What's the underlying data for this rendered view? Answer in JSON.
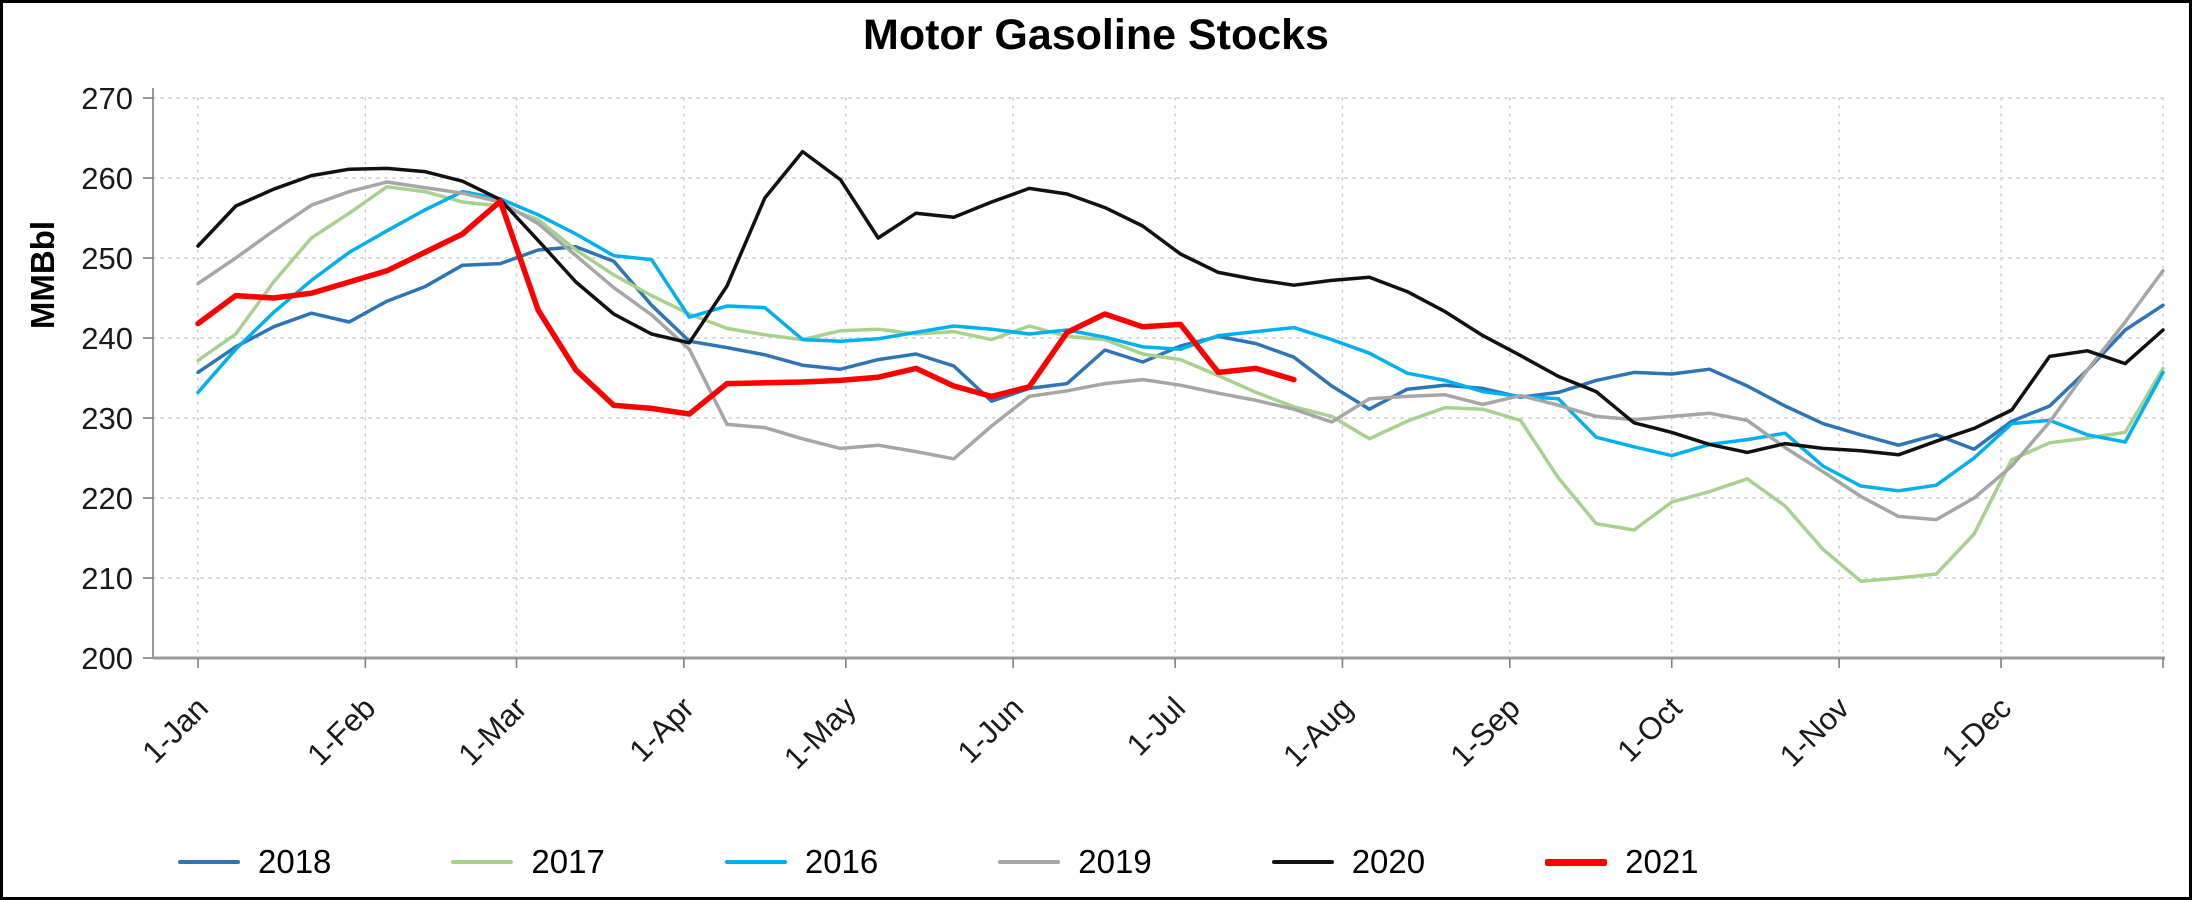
{
  "chart_data": {
    "type": "line",
    "title": "Motor Gasoline Stocks",
    "xlabel": "",
    "ylabel": "MMBbl",
    "ylim": [
      200,
      270
    ],
    "y_ticks": [
      200,
      210,
      220,
      230,
      240,
      250,
      260,
      270
    ],
    "x_tick_labels": [
      "1-Jan",
      "1-Feb",
      "1-Mar",
      "1-Apr",
      "1-May",
      "1-Jun",
      "1-Jul",
      "1-Aug",
      "1-Sep",
      "1-Oct",
      "1-Nov",
      "1-Dec"
    ],
    "x_tick_days": [
      0,
      31,
      59,
      90,
      120,
      151,
      181,
      212,
      243,
      273,
      304,
      334
    ],
    "days_per_point": 7,
    "x_domain_days": [
      0,
      364
    ],
    "grid": "dashed",
    "legend_position": "bottom",
    "series": [
      {
        "name": "2018",
        "color": "#2E75B6",
        "width": 3.5,
        "values": [
          235.7,
          238.9,
          241.4,
          243.1,
          242.0,
          244.6,
          246.4,
          249.1,
          249.3,
          251.0,
          251.4,
          249.6,
          244.1,
          239.6,
          238.8,
          237.9,
          236.6,
          236.1,
          237.3,
          238.0,
          236.5,
          232.1,
          233.7,
          234.3,
          238.5,
          237.0,
          239.0,
          240.2,
          239.3,
          237.6,
          234.0,
          231.1,
          233.6,
          234.1,
          233.7,
          232.6,
          233.2,
          234.7,
          235.7,
          235.5,
          236.1,
          234.0,
          231.5,
          229.3,
          227.9,
          226.6,
          227.9,
          226.1,
          229.6,
          231.5,
          236.0,
          241.0,
          244.1
        ]
      },
      {
        "name": "2017",
        "color": "#A9D18E",
        "width": 3.5,
        "values": [
          237.2,
          240.5,
          247.0,
          252.5,
          255.6,
          258.9,
          258.3,
          257.0,
          256.5,
          254.8,
          251.0,
          247.9,
          245.3,
          243.0,
          241.2,
          240.4,
          239.8,
          240.9,
          241.1,
          240.5,
          240.8,
          239.8,
          241.5,
          240.2,
          239.8,
          238.0,
          237.3,
          235.3,
          233.2,
          231.4,
          230.2,
          227.4,
          229.6,
          231.3,
          231.1,
          229.7,
          222.5,
          216.8,
          216.0,
          219.5,
          220.8,
          222.4,
          219.0,
          213.6,
          209.6,
          210.0,
          210.5,
          215.5,
          224.8,
          226.9,
          227.5,
          228.2,
          236.2
        ]
      },
      {
        "name": "2016",
        "color": "#00B0F0",
        "width": 3.5,
        "values": [
          233.2,
          238.6,
          243.2,
          247.2,
          250.7,
          253.4,
          256.0,
          258.3,
          257.4,
          255.4,
          253.0,
          250.3,
          249.8,
          242.6,
          244.0,
          243.8,
          239.8,
          239.6,
          239.9,
          240.7,
          241.5,
          241.1,
          240.5,
          241.0,
          240.1,
          238.9,
          238.6,
          240.3,
          240.8,
          241.3,
          239.8,
          238.1,
          235.6,
          234.7,
          233.3,
          232.7,
          232.4,
          227.6,
          226.4,
          225.3,
          226.7,
          227.3,
          228.1,
          224.0,
          221.5,
          220.9,
          221.6,
          225.0,
          229.3,
          229.7,
          227.9,
          227.0,
          235.7
        ]
      },
      {
        "name": "2019",
        "color": "#A6A6A6",
        "width": 3.5,
        "values": [
          246.8,
          250.0,
          253.4,
          256.6,
          258.3,
          259.5,
          258.8,
          258.1,
          257.0,
          254.3,
          250.3,
          246.3,
          242.9,
          238.6,
          229.2,
          228.8,
          227.4,
          226.2,
          226.6,
          225.8,
          224.9,
          229.0,
          232.7,
          233.4,
          234.3,
          234.8,
          234.1,
          233.1,
          232.2,
          231.1,
          229.5,
          232.4,
          232.7,
          232.9,
          231.7,
          232.8,
          231.6,
          230.2,
          229.8,
          230.2,
          230.6,
          229.7,
          226.3,
          223.3,
          220.2,
          217.7,
          217.3,
          220.0,
          224.0,
          229.5,
          236.0,
          242.0,
          248.4
        ]
      },
      {
        "name": "2020",
        "color": "#111111",
        "width": 3.5,
        "values": [
          251.5,
          256.5,
          258.6,
          260.3,
          261.1,
          261.2,
          260.8,
          259.6,
          257.3,
          252.2,
          247.0,
          243.0,
          240.5,
          239.4,
          246.5,
          257.5,
          263.3,
          259.8,
          252.5,
          255.6,
          255.1,
          257.0,
          258.7,
          258.0,
          256.3,
          254.0,
          250.5,
          248.2,
          247.3,
          246.6,
          247.2,
          247.6,
          245.8,
          243.3,
          240.3,
          237.8,
          235.2,
          233.3,
          229.4,
          228.2,
          226.7,
          225.7,
          226.8,
          226.2,
          225.9,
          225.4,
          227.1,
          228.7,
          231.0,
          237.7,
          238.4,
          236.8,
          241.0
        ]
      },
      {
        "name": "2021",
        "color": "#FF0000",
        "width": 5.5,
        "values": [
          241.8,
          245.3,
          245.0,
          245.6,
          247.0,
          248.4,
          250.7,
          253.0,
          257.1,
          243.5,
          236.0,
          231.6,
          231.2,
          230.5,
          234.3,
          234.4,
          234.5,
          234.7,
          235.1,
          236.2,
          234.0,
          232.7,
          233.9,
          240.7,
          243.0,
          241.4,
          241.7,
          235.7,
          236.2,
          234.8
        ]
      }
    ]
  }
}
